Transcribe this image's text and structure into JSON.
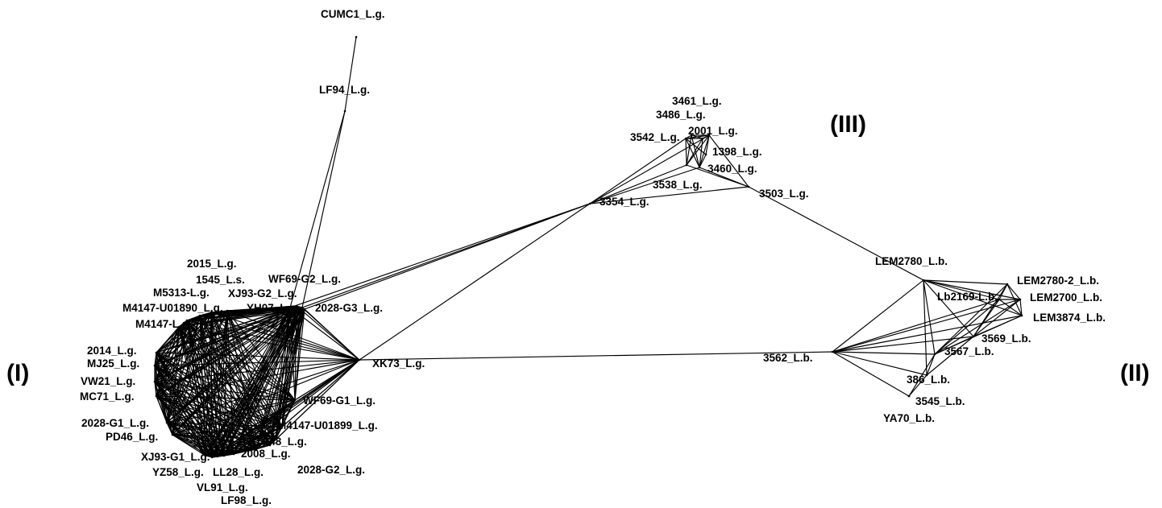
{
  "cluster_labels": {
    "cluster1": "(I)",
    "cluster2": "(II)",
    "cluster3": "(III)"
  },
  "nodes": [
    {
      "id": "CUMC1_L.g."
    },
    {
      "id": "LF94_L.g."
    },
    {
      "id": "2015_L.g."
    },
    {
      "id": "1545_L.s."
    },
    {
      "id": "WF69-G2_L.g."
    },
    {
      "id": "M5313-L.g."
    },
    {
      "id": "XJ93-G2_L.g."
    },
    {
      "id": "M4147-U01890_L.g."
    },
    {
      "id": "YH07_L.g."
    },
    {
      "id": "M4147-L.g."
    },
    {
      "id": "2028-G3_L.g."
    },
    {
      "id": "2014_L.g."
    },
    {
      "id": "MJ25_L.g."
    },
    {
      "id": "VW21_L.g."
    },
    {
      "id": "MC71_L.g."
    },
    {
      "id": "2028-G1_L.g."
    },
    {
      "id": "PD46_L.g."
    },
    {
      "id": "XJ93-G1_L.g."
    },
    {
      "id": "YZ58_L.g."
    },
    {
      "id": "LL28_L.g."
    },
    {
      "id": "VL91_L.g."
    },
    {
      "id": "LF98_L.g."
    },
    {
      "id": "2008_L.g."
    },
    {
      "id": "2028-G2_L.g."
    },
    {
      "id": "L48_L.g."
    },
    {
      "id": "M4147-U01899_L.g."
    },
    {
      "id": "WF69-G1_L.g."
    },
    {
      "id": "XK73_L.g."
    },
    {
      "id": "3461_L.g."
    },
    {
      "id": "3486_L.g."
    },
    {
      "id": "3542_L.g."
    },
    {
      "id": "2001_L.g."
    },
    {
      "id": "1398_L.g."
    },
    {
      "id": "3460_L.g."
    },
    {
      "id": "3538_L.g."
    },
    {
      "id": "3503_L.g."
    },
    {
      "id": "3354_L.g."
    },
    {
      "id": "LEM2780_L.b."
    },
    {
      "id": "LEM2780-2_L.b."
    },
    {
      "id": "Lb2169-L.b."
    },
    {
      "id": "LEM2700_L.b."
    },
    {
      "id": "LEM3874_L.b."
    },
    {
      "id": "3569_L.b."
    },
    {
      "id": "3567_L.b."
    },
    {
      "id": "3562_L.b."
    },
    {
      "id": "386_L.b."
    },
    {
      "id": "3545_L.b."
    },
    {
      "id": "YA70_L.b."
    }
  ],
  "edges": [
    [
      "CUMC1_L.g.",
      "LF94_L.g."
    ],
    [
      "LF94_L.g.",
      "YH07_L.g."
    ],
    [
      "LF94_L.g.",
      "XJ93-G2_L.g."
    ],
    [
      "YH07_L.g.",
      "3354_L.g."
    ],
    [
      "XJ93-G2_L.g.",
      "3354_L.g."
    ],
    [
      "2028-G3_L.g.",
      "3354_L.g."
    ],
    [
      "XK73_L.g.",
      "3354_L.g."
    ],
    [
      "XK73_L.g.",
      "3562_L.b."
    ],
    [
      "3354_L.g.",
      "3542_L.g."
    ],
    [
      "3354_L.g.",
      "2001_L.g."
    ],
    [
      "3354_L.g.",
      "3460_L.g."
    ],
    [
      "3354_L.g.",
      "3503_L.g."
    ],
    [
      "3354_L.g.",
      "3538_L.g."
    ],
    [
      "3503_L.g.",
      "LEM2780_L.b."
    ],
    [
      "3542_L.g.",
      "3461_L.g."
    ],
    [
      "3542_L.g.",
      "3486_L.g."
    ],
    [
      "3542_L.g.",
      "2001_L.g."
    ],
    [
      "3542_L.g.",
      "1398_L.g."
    ],
    [
      "3542_L.g.",
      "3460_L.g."
    ],
    [
      "3542_L.g.",
      "3538_L.g."
    ],
    [
      "3461_L.g.",
      "3486_L.g."
    ],
    [
      "3461_L.g.",
      "2001_L.g."
    ],
    [
      "3461_L.g.",
      "3460_L.g."
    ],
    [
      "3461_L.g.",
      "3538_L.g."
    ],
    [
      "3486_L.g.",
      "2001_L.g."
    ],
    [
      "3486_L.g.",
      "3460_L.g."
    ],
    [
      "3486_L.g.",
      "3538_L.g."
    ],
    [
      "2001_L.g.",
      "1398_L.g."
    ],
    [
      "2001_L.g.",
      "3460_L.g."
    ],
    [
      "2001_L.g.",
      "3538_L.g."
    ],
    [
      "2001_L.g.",
      "3503_L.g."
    ],
    [
      "1398_L.g.",
      "3460_L.g."
    ],
    [
      "3460_L.g.",
      "3503_L.g."
    ],
    [
      "3538_L.g.",
      "3503_L.g."
    ],
    [
      "3562_L.b.",
      "LEM2780_L.b."
    ],
    [
      "3562_L.b.",
      "3567_L.b."
    ],
    [
      "3562_L.b.",
      "3569_L.b."
    ],
    [
      "3562_L.b.",
      "386_L.b."
    ],
    [
      "3562_L.b.",
      "3545_L.b."
    ],
    [
      "3562_L.b.",
      "LEM3874_L.b."
    ],
    [
      "3562_L.b.",
      "LEM2700_L.b."
    ],
    [
      "3562_L.b.",
      "Lb2169-L.b."
    ],
    [
      "LEM2780_L.b.",
      "LEM2780-2_L.b."
    ],
    [
      "LEM2780_L.b.",
      "Lb2169-L.b."
    ],
    [
      "LEM2780_L.b.",
      "LEM2700_L.b."
    ],
    [
      "LEM2780_L.b.",
      "LEM3874_L.b."
    ],
    [
      "LEM2780_L.b.",
      "3569_L.b."
    ],
    [
      "LEM2780_L.b.",
      "3567_L.b."
    ],
    [
      "LEM2780_L.b.",
      "386_L.b."
    ],
    [
      "LEM2780-2_L.b.",
      "Lb2169-L.b."
    ],
    [
      "LEM2780-2_L.b.",
      "LEM2700_L.b."
    ],
    [
      "LEM2780-2_L.b.",
      "LEM3874_L.b."
    ],
    [
      "LEM2780-2_L.b.",
      "3569_L.b."
    ],
    [
      "LEM2780-2_L.b.",
      "3567_L.b."
    ],
    [
      "Lb2169-L.b.",
      "LEM2700_L.b."
    ],
    [
      "Lb2169-L.b.",
      "LEM3874_L.b."
    ],
    [
      "Lb2169-L.b.",
      "3569_L.b."
    ],
    [
      "Lb2169-L.b.",
      "3567_L.b."
    ],
    [
      "LEM2700_L.b.",
      "LEM3874_L.b."
    ],
    [
      "LEM2700_L.b.",
      "3569_L.b."
    ],
    [
      "LEM2700_L.b.",
      "3567_L.b."
    ],
    [
      "LEM3874_L.b.",
      "3569_L.b."
    ],
    [
      "LEM3874_L.b.",
      "3567_L.b."
    ],
    [
      "3569_L.b.",
      "3567_L.b."
    ],
    [
      "3569_L.b.",
      "386_L.b."
    ],
    [
      "3567_L.b.",
      "386_L.b."
    ],
    [
      "3567_L.b.",
      "3545_L.b."
    ],
    [
      "386_L.b.",
      "3545_L.b."
    ]
  ],
  "dense_cluster": [
    "WF69-G2_L.g.",
    "XJ93-G2_L.g.",
    "YH07_L.g.",
    "2028-G3_L.g.",
    "M5313-L.g.",
    "M4147-U01890_L.g.",
    "M4147-L.g.",
    "2014_L.g.",
    "MJ25_L.g.",
    "VW21_L.g.",
    "MC71_L.g.",
    "2028-G1_L.g.",
    "PD46_L.g.",
    "XJ93-G1_L.g.",
    "YZ58_L.g.",
    "LL28_L.g.",
    "2008_L.g.",
    "L48_L.g.",
    "M4147-U01899_L.g.",
    "WF69-G1_L.g.",
    "XK73_L.g.",
    "2015_L.g.",
    "1545_L.s.",
    "VL91_L.g.",
    "LF98_L.g.",
    "2028-G2_L.g."
  ]
}
